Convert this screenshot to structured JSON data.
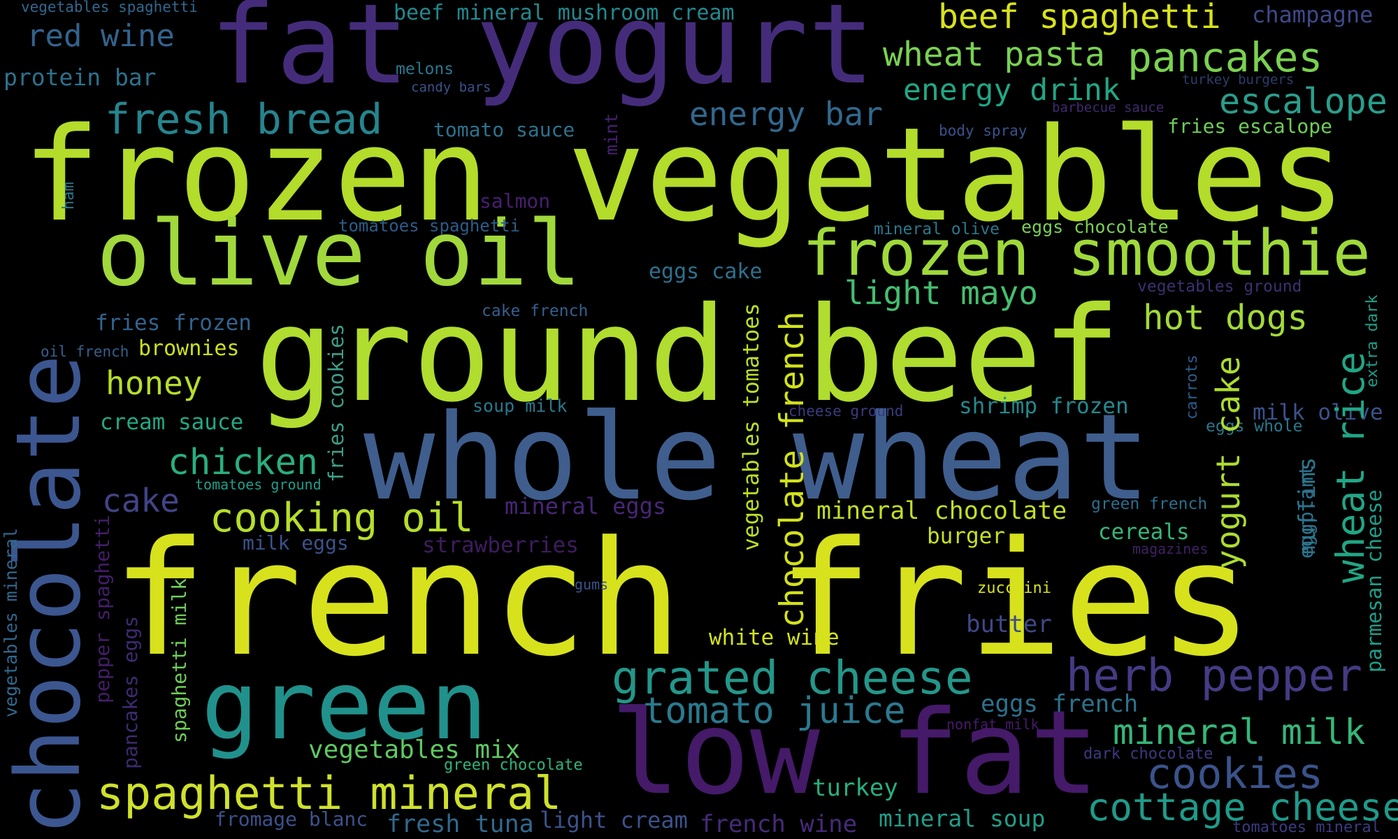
{
  "words": [
    {
      "text": "french fries",
      "color": "#d7e21d"
    },
    {
      "text": "frozen vegetables",
      "color": "#b4dc2a"
    },
    {
      "text": "ground beef",
      "color": "#b0dd2f"
    },
    {
      "text": "whole wheat",
      "color": "#3f5e8d"
    },
    {
      "text": "low fat",
      "color": "#451a69"
    },
    {
      "text": "fat yogurt",
      "color": "#452c7a"
    },
    {
      "text": "olive oil",
      "color": "#a1d83c"
    },
    {
      "text": "chocolate",
      "color": "#3c5690"
    },
    {
      "text": "green",
      "color": "#21918c"
    },
    {
      "text": "frozen smoothie",
      "color": "#9fd93b"
    },
    {
      "text": "spaghetti mineral",
      "color": "#cfe12b"
    },
    {
      "text": "grated cheese",
      "color": "#23978a"
    },
    {
      "text": "herb pepper",
      "color": "#443b84"
    },
    {
      "text": "cooking oil",
      "color": "#b6de2b"
    },
    {
      "text": "fresh bread",
      "color": "#25858e"
    },
    {
      "text": "cottage cheese",
      "color": "#1e9b8a"
    },
    {
      "text": "cookies",
      "color": "#3a538b"
    },
    {
      "text": "tomato juice",
      "color": "#2a7a8e"
    },
    {
      "text": "beef spaghetti",
      "color": "#d8e219"
    },
    {
      "text": "pancakes",
      "color": "#7ad151"
    },
    {
      "text": "wheat pasta",
      "color": "#7ad151"
    },
    {
      "text": "mineral milk",
      "color": "#35b779"
    },
    {
      "text": "escalope",
      "color": "#2a9e8b"
    },
    {
      "text": "energy bar",
      "color": "#31688e"
    },
    {
      "text": "energy drink",
      "color": "#21a685"
    },
    {
      "text": "red wine",
      "color": "#33638d"
    },
    {
      "text": "hot dogs",
      "color": "#a2da37"
    },
    {
      "text": "light mayo",
      "color": "#44bf70"
    },
    {
      "text": "chicken",
      "color": "#29af7f"
    },
    {
      "text": "honey",
      "color": "#b5de2b"
    },
    {
      "text": "cake",
      "color": "#414487"
    },
    {
      "text": "shrimp frozen",
      "color": "#23898e"
    },
    {
      "text": "vegetables mix",
      "color": "#5ec962"
    },
    {
      "text": "mineral chocolate",
      "color": "#c2df23"
    },
    {
      "text": "mineral eggs",
      "color": "#482677"
    },
    {
      "text": "eggs french",
      "color": "#2c728e"
    },
    {
      "text": "turkey",
      "color": "#29af7f"
    },
    {
      "text": "burger",
      "color": "#c8e020"
    },
    {
      "text": "cereals",
      "color": "#35b779"
    },
    {
      "text": "butter",
      "color": "#3e4989"
    },
    {
      "text": "white wine",
      "color": "#d2e21b"
    },
    {
      "text": "mineral soup",
      "color": "#1f9e89"
    },
    {
      "text": "fresh tuna",
      "color": "#31688e"
    },
    {
      "text": "light cream",
      "color": "#3b528b"
    },
    {
      "text": "french wine",
      "color": "#472a7a"
    },
    {
      "text": "fromage blanc",
      "color": "#3b528b"
    },
    {
      "text": "beef mineral mushroom cream",
      "color": "#23888e"
    },
    {
      "text": "champagne",
      "color": "#3e4989"
    },
    {
      "text": "protein bar",
      "color": "#2c728e"
    },
    {
      "text": "tomato sauce",
      "color": "#2c728e"
    },
    {
      "text": "fries escalope",
      "color": "#6ece58"
    },
    {
      "text": "fries frozen",
      "color": "#33638d"
    },
    {
      "text": "brownies",
      "color": "#cde11d"
    },
    {
      "text": "cream sauce",
      "color": "#22a884"
    },
    {
      "text": "strawberries",
      "color": "#3f1b5f"
    },
    {
      "text": "milk eggs",
      "color": "#3b528b"
    },
    {
      "text": "salmon",
      "color": "#481f70"
    },
    {
      "text": "eggs cake",
      "color": "#2d708e"
    },
    {
      "text": "soup milk",
      "color": "#2a788e"
    },
    {
      "text": "cake french",
      "color": "#355f8d"
    },
    {
      "text": "melons",
      "color": "#2a788e"
    },
    {
      "text": "candy bars",
      "color": "#3b528b"
    },
    {
      "text": "body spray",
      "color": "#3b528b"
    },
    {
      "text": "barbecue sauce",
      "color": "#3f2a6d"
    },
    {
      "text": "turkey burgers",
      "color": "#2c3e6b"
    },
    {
      "text": "mineral olive",
      "color": "#2a788e"
    },
    {
      "text": "eggs chocolate",
      "color": "#7ad151"
    },
    {
      "text": "vegetables ground",
      "color": "#3b3170"
    },
    {
      "text": "tomatoes spaghetti",
      "color": "#2c5c8a"
    },
    {
      "text": "oil french",
      "color": "#355f8d"
    },
    {
      "text": "tomatoes ground",
      "color": "#1f9e89"
    },
    {
      "text": "cheese ground",
      "color": "#3b3a80"
    },
    {
      "text": "milk olive",
      "color": "#3b528b"
    },
    {
      "text": "eggs whole",
      "color": "#2a788e"
    },
    {
      "text": "green french",
      "color": "#2a6f8e"
    },
    {
      "text": "magazines",
      "color": "#3f2165"
    },
    {
      "text": "zucchini",
      "color": "#d8e219"
    },
    {
      "text": "gums",
      "color": "#3b528b"
    },
    {
      "text": "nonfat milk",
      "color": "#481a6c"
    },
    {
      "text": "dark chocolate",
      "color": "#3b3a80"
    },
    {
      "text": "green chocolate",
      "color": "#2fb47c"
    },
    {
      "text": "tomatoes mineral",
      "color": "#3b3a80"
    },
    {
      "text": "vegetables spaghetti",
      "color": "#31688e"
    },
    {
      "text": "ham",
      "color": "#2a788e"
    },
    {
      "text": "mint",
      "color": "#482173"
    },
    {
      "text": "chocolate french",
      "color": "#d2e21b"
    },
    {
      "text": "vegetables tomatoes",
      "color": "#bddf26"
    },
    {
      "text": "fries cookies",
      "color": "#3e9f89"
    },
    {
      "text": "wheat rice",
      "color": "#21a685"
    },
    {
      "text": "yogurt cake",
      "color": "#addc30"
    },
    {
      "text": "muffins",
      "color": "#2a788e"
    },
    {
      "text": "eggplant",
      "color": "#2c728e"
    },
    {
      "text": "carrots",
      "color": "#2c5c8a"
    },
    {
      "text": "extra dark",
      "color": "#1f9e89"
    },
    {
      "text": "parmesan cheese",
      "color": "#1f9e89"
    },
    {
      "text": "vegetables mineral",
      "color": "#31688e"
    },
    {
      "text": "pepper spaghetti",
      "color": "#441e6a"
    },
    {
      "text": "pancakes eggs",
      "color": "#3e2a72"
    },
    {
      "text": "spaghetti milk",
      "color": "#6ece58"
    }
  ]
}
